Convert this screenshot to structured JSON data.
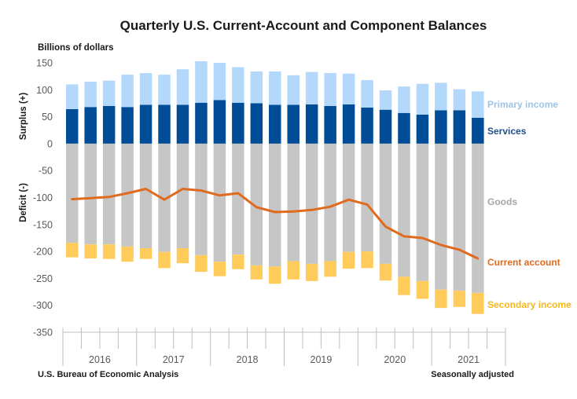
{
  "chart_data": {
    "type": "bar",
    "subtype": "stacked-bar-with-line",
    "title": "Quarterly U.S. Current-Account and Component Balances",
    "ylabel": "Billions of dollars",
    "ylabel_positive": "Surplus (+)",
    "ylabel_negative": "Deficit (-)",
    "ylim": [
      -350,
      150
    ],
    "yticks": [
      150,
      100,
      50,
      0,
      -50,
      -100,
      -150,
      -200,
      -250,
      -300,
      -350
    ],
    "years": [
      "2016",
      "2017",
      "2018",
      "2019",
      "2020",
      "2021"
    ],
    "quarters_per_year": 4,
    "categories": [
      "2016 Q1",
      "2016 Q2",
      "2016 Q3",
      "2016 Q4",
      "2017 Q1",
      "2017 Q2",
      "2017 Q3",
      "2017 Q4",
      "2018 Q1",
      "2018 Q2",
      "2018 Q3",
      "2018 Q4",
      "2019 Q1",
      "2019 Q2",
      "2019 Q3",
      "2019 Q4",
      "2020 Q1",
      "2020 Q2",
      "2020 Q3",
      "2020 Q4",
      "2021 Q1",
      "2021 Q2",
      "2021 Q3"
    ],
    "series": [
      {
        "name": "Services",
        "type": "bar",
        "color": "#004C97",
        "label_color": "#1F4E8C",
        "values": [
          64,
          68,
          70,
          68,
          72,
          72,
          72,
          76,
          81,
          76,
          75,
          72,
          72,
          73,
          70,
          73,
          67,
          63,
          57,
          54,
          62,
          62,
          48
        ]
      },
      {
        "name": "Primary income",
        "type": "bar",
        "color": "#B4D8FB",
        "label_color": "#9DC3E6",
        "values": [
          46,
          47,
          47,
          60,
          59,
          56,
          66,
          77,
          69,
          66,
          59,
          62,
          55,
          60,
          61,
          57,
          51,
          36,
          49,
          57,
          51,
          39,
          49
        ]
      },
      {
        "name": "Goods",
        "type": "bar",
        "color": "#C6C6C6",
        "label_color": "#A6A6A6",
        "values": [
          -184,
          -187,
          -187,
          -191,
          -194,
          -201,
          -194,
          -207,
          -219,
          -206,
          -226,
          -228,
          -218,
          -223,
          -218,
          -201,
          -200,
          -223,
          -247,
          -255,
          -271,
          -273,
          -277
        ]
      },
      {
        "name": "Secondary income",
        "type": "bar",
        "color": "#FFCC5C",
        "label_color": "#F4B819",
        "values": [
          -27,
          -26,
          -27,
          -28,
          -20,
          -30,
          -28,
          -31,
          -27,
          -27,
          -26,
          -32,
          -34,
          -32,
          -29,
          -31,
          -31,
          -31,
          -34,
          -33,
          -34,
          -30,
          -39
        ]
      },
      {
        "name": "Current account",
        "type": "line",
        "color": "#E06A1E",
        "label_color": "#E06A1E",
        "values": [
          -103,
          -101,
          -99,
          -92,
          -84,
          -104,
          -84,
          -87,
          -96,
          -92,
          -118,
          -127,
          -126,
          -123,
          -117,
          -104,
          -113,
          -154,
          -172,
          -175,
          -188,
          -197,
          -213
        ]
      }
    ],
    "legend_placement": "right, inline labels",
    "grid": false,
    "source": "U.S. Bureau of Economic Analysis",
    "note": "Seasonally adjusted"
  }
}
